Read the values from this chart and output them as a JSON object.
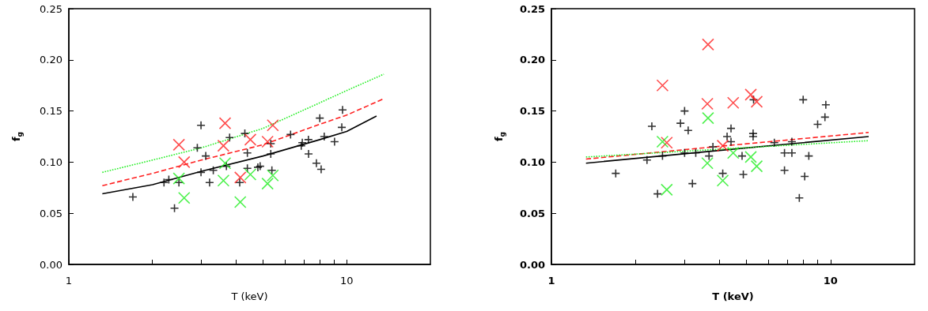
{
  "chart_data": [
    {
      "type": "scatter",
      "xlabel": "T (keV)",
      "ylabel": "f$_{g}$",
      "log": "x",
      "grid": false,
      "xlim": [
        1,
        20
      ],
      "ylim": [
        0,
        0.25
      ],
      "xticks": [
        {
          "value": 1,
          "label": "1"
        },
        {
          "value": 2,
          "label": null
        },
        {
          "value": 3,
          "label": null
        },
        {
          "value": 4,
          "label": null
        },
        {
          "value": 5,
          "label": null
        },
        {
          "value": 6,
          "label": null
        },
        {
          "value": 7,
          "label": null
        },
        {
          "value": 8,
          "label": null
        },
        {
          "value": 9,
          "label": null
        },
        {
          "value": 10,
          "label": "10"
        }
      ],
      "yticks": [
        {
          "value": 0,
          "label": "0.00"
        },
        {
          "value": 0.05,
          "label": "0.05"
        },
        {
          "value": 0.1,
          "label": "0.10"
        },
        {
          "value": 0.15,
          "label": "0.15"
        },
        {
          "value": 0.2,
          "label": "0.20"
        },
        {
          "value": 0.25,
          "label": "0.25"
        }
      ],
      "series": [
        {
          "marker": "plus",
          "color": "#000000",
          "x": [
            1.7,
            2.2,
            2.29,
            2.4,
            2.49,
            2.9,
            2.99,
            2.99,
            3.11,
            3.21,
            3.31,
            3.69,
            3.79,
            4.12,
            4.3,
            4.39,
            4.39,
            4.79,
            4.88,
            5.33,
            5.33,
            5.38,
            6.28,
            6.86,
            6.92,
            7.28,
            7.29,
            7.78,
            8.0,
            8.09,
            8.3,
            9.04,
            9.66,
            9.6
          ],
          "values": [
            0.066,
            0.08,
            0.083,
            0.055,
            0.08,
            0.114,
            0.136,
            0.09,
            0.106,
            0.08,
            0.092,
            0.096,
            0.124,
            0.08,
            0.128,
            0.109,
            0.094,
            0.095,
            0.096,
            0.118,
            0.108,
            0.092,
            0.127,
            0.116,
            0.119,
            0.122,
            0.108,
            0.099,
            0.143,
            0.093,
            0.125,
            0.12,
            0.151,
            0.134
          ]
        },
        {
          "marker": "cross",
          "color": "#ff2020",
          "x": [
            2.49,
            2.6,
            3.65,
            3.6,
            4.14,
            4.5,
            5.19,
            5.42
          ],
          "values": [
            0.117,
            0.1,
            0.138,
            0.116,
            0.085,
            0.122,
            0.12,
            0.136
          ]
        },
        {
          "marker": "cross",
          "color": "#22ee22",
          "x": [
            2.49,
            2.6,
            3.65,
            3.6,
            4.14,
            4.5,
            5.19,
            5.42
          ],
          "values": [
            0.084,
            0.065,
            0.099,
            0.082,
            0.061,
            0.088,
            0.079,
            0.087
          ]
        },
        {
          "type": "line",
          "marker": "none",
          "line_style": "solid",
          "color": "#000000",
          "x": [
            1.32,
            2,
            3,
            5,
            8,
            10,
            12.8
          ],
          "values": [
            0.069,
            0.078,
            0.091,
            0.106,
            0.122,
            0.13,
            0.145
          ]
        },
        {
          "type": "line",
          "marker": "none",
          "line_style": "dashed",
          "color": "#ff2020",
          "x": [
            1.32,
            2,
            3,
            5,
            8,
            10,
            13.6
          ],
          "values": [
            0.077,
            0.089,
            0.102,
            0.117,
            0.137,
            0.146,
            0.162
          ]
        },
        {
          "type": "line",
          "marker": "none",
          "line_style": "dotted",
          "color": "#22ee22",
          "x": [
            1.32,
            2,
            3,
            5,
            8,
            10,
            13.6
          ],
          "values": [
            0.09,
            0.102,
            0.114,
            0.133,
            0.158,
            0.17,
            0.186
          ]
        }
      ]
    },
    {
      "type": "scatter",
      "xlabel": "T (keV)",
      "ylabel": "f$_{g}$",
      "log": "x",
      "grid": false,
      "xlim": [
        1,
        20
      ],
      "ylim": [
        0,
        0.25
      ],
      "xticks": [
        {
          "value": 1,
          "label": "1"
        },
        {
          "value": 2,
          "label": null
        },
        {
          "value": 3,
          "label": null
        },
        {
          "value": 4,
          "label": null
        },
        {
          "value": 5,
          "label": null
        },
        {
          "value": 6,
          "label": null
        },
        {
          "value": 7,
          "label": null
        },
        {
          "value": 8,
          "label": null
        },
        {
          "value": 9,
          "label": null
        },
        {
          "value": 10,
          "label": "10"
        }
      ],
      "yticks": [
        {
          "value": 0,
          "label": "0.00"
        },
        {
          "value": 0.05,
          "label": "0.05"
        },
        {
          "value": 0.1,
          "label": "0.10"
        },
        {
          "value": 0.15,
          "label": "0.15"
        },
        {
          "value": 0.2,
          "label": "0.20"
        },
        {
          "value": 0.25,
          "label": "0.25"
        }
      ],
      "series": [
        {
          "marker": "plus",
          "color": "#000000",
          "x": [
            1.7,
            2.2,
            2.29,
            2.4,
            2.5,
            2.9,
            3.0,
            3.0,
            3.09,
            3.2,
            3.29,
            3.67,
            3.79,
            4.11,
            4.26,
            4.4,
            4.4,
            4.82,
            4.87,
            5.28,
            5.28,
            5.3,
            6.29,
            6.84,
            6.84,
            7.27,
            7.27,
            7.73,
            7.98,
            8.08,
            8.36,
            8.99,
            9.55,
            9.62
          ],
          "values": [
            0.089,
            0.102,
            0.135,
            0.069,
            0.106,
            0.138,
            0.15,
            0.109,
            0.131,
            0.079,
            0.109,
            0.106,
            0.115,
            0.089,
            0.125,
            0.133,
            0.12,
            0.106,
            0.088,
            0.128,
            0.125,
            0.161,
            0.119,
            0.109,
            0.092,
            0.109,
            0.12,
            0.065,
            0.161,
            0.086,
            0.106,
            0.137,
            0.144,
            0.156
          ]
        },
        {
          "marker": "cross",
          "color": "#ff2020",
          "x": [
            2.5,
            2.59,
            3.64,
            3.62,
            4.11,
            4.48,
            5.18,
            5.44
          ],
          "values": [
            0.175,
            0.119,
            0.215,
            0.157,
            0.116,
            0.158,
            0.166,
            0.159
          ]
        },
        {
          "marker": "cross",
          "color": "#22ee22",
          "x": [
            2.5,
            2.59,
            3.64,
            3.62,
            4.11,
            4.48,
            5.18,
            5.44
          ],
          "values": [
            0.12,
            0.073,
            0.143,
            0.099,
            0.082,
            0.109,
            0.105,
            0.096
          ]
        },
        {
          "type": "line",
          "marker": "none",
          "line_style": "solid",
          "color": "#000000",
          "x": [
            1.33,
            4.2,
            13.7
          ],
          "values": [
            0.099,
            0.112,
            0.125
          ]
        },
        {
          "type": "line",
          "marker": "none",
          "line_style": "dashed",
          "color": "#ff2020",
          "x": [
            1.33,
            4.2,
            13.7
          ],
          "values": [
            0.103,
            0.116,
            0.129
          ]
        },
        {
          "type": "line",
          "marker": "none",
          "line_style": "dotted",
          "color": "#22ee22",
          "x": [
            1.33,
            4.2,
            13.7
          ],
          "values": [
            0.105,
            0.113,
            0.121
          ]
        }
      ]
    }
  ]
}
